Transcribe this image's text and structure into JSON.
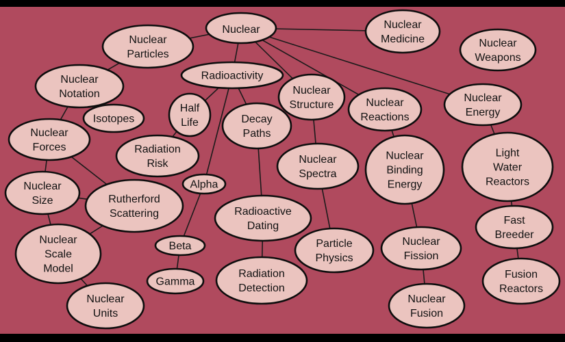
{
  "nodes": [
    {
      "id": "nuclear",
      "lines": [
        "Nuclear"
      ]
    },
    {
      "id": "medicine",
      "lines": [
        "Nuclear",
        "Medicine"
      ]
    },
    {
      "id": "particles",
      "lines": [
        "Nuclear",
        "Particles"
      ]
    },
    {
      "id": "weapons",
      "lines": [
        "Nuclear",
        "Weapons"
      ]
    },
    {
      "id": "notation",
      "lines": [
        "Nuclear",
        "Notation"
      ]
    },
    {
      "id": "radioactivity",
      "lines": [
        "Radioactivity"
      ]
    },
    {
      "id": "structure",
      "lines": [
        "Nuclear",
        "Structure"
      ]
    },
    {
      "id": "reactions",
      "lines": [
        "Nuclear",
        "Reactions"
      ]
    },
    {
      "id": "energy",
      "lines": [
        "Nuclear",
        "Energy"
      ]
    },
    {
      "id": "isotopes",
      "lines": [
        "Isotopes"
      ]
    },
    {
      "id": "halflife",
      "lines": [
        "Half",
        "Life"
      ]
    },
    {
      "id": "decay",
      "lines": [
        "Decay",
        "Paths"
      ]
    },
    {
      "id": "forces",
      "lines": [
        "Nuclear",
        "Forces"
      ]
    },
    {
      "id": "risk",
      "lines": [
        "Radiation",
        "Risk"
      ]
    },
    {
      "id": "spectra",
      "lines": [
        "Nuclear",
        "Spectra"
      ]
    },
    {
      "id": "binding",
      "lines": [
        "Nuclear",
        "Binding",
        "Energy"
      ]
    },
    {
      "id": "lwr",
      "lines": [
        "Light",
        "Water",
        "Reactors"
      ]
    },
    {
      "id": "size",
      "lines": [
        "Nuclear",
        "Size"
      ]
    },
    {
      "id": "alpha",
      "lines": [
        "Alpha"
      ]
    },
    {
      "id": "rutherford",
      "lines": [
        "Rutherford",
        "Scattering"
      ]
    },
    {
      "id": "dating",
      "lines": [
        "Radioactive",
        "Dating"
      ]
    },
    {
      "id": "breeder",
      "lines": [
        "Fast",
        "Breeder"
      ]
    },
    {
      "id": "scale",
      "lines": [
        "Nuclear",
        "Scale",
        "Model"
      ]
    },
    {
      "id": "beta",
      "lines": [
        "Beta"
      ]
    },
    {
      "id": "particlephys",
      "lines": [
        "Particle",
        "Physics"
      ]
    },
    {
      "id": "fission",
      "lines": [
        "Nuclear",
        "Fission"
      ]
    },
    {
      "id": "gamma",
      "lines": [
        "Gamma"
      ]
    },
    {
      "id": "detection",
      "lines": [
        "Radiation",
        "Detection"
      ]
    },
    {
      "id": "fusionreact",
      "lines": [
        "Fusion",
        "Reactors"
      ]
    },
    {
      "id": "units",
      "lines": [
        "Nuclear",
        "Units"
      ]
    },
    {
      "id": "fusion",
      "lines": [
        "Nuclear",
        "Fusion"
      ]
    }
  ],
  "edges": [
    [
      "nuclear",
      "medicine"
    ],
    [
      "nuclear",
      "particles"
    ],
    [
      "nuclear",
      "radioactivity"
    ],
    [
      "nuclear",
      "structure"
    ],
    [
      "nuclear",
      "reactions"
    ],
    [
      "nuclear",
      "energy"
    ],
    [
      "particles",
      "notation"
    ],
    [
      "notation",
      "forces"
    ],
    [
      "forces",
      "size"
    ],
    [
      "forces",
      "rutherford"
    ],
    [
      "size",
      "rutherford"
    ],
    [
      "size",
      "scale"
    ],
    [
      "rutherford",
      "scale"
    ],
    [
      "scale",
      "units"
    ],
    [
      "radioactivity",
      "halflife"
    ],
    [
      "halflife",
      "risk"
    ],
    [
      "radioactivity",
      "decay"
    ],
    [
      "decay",
      "dating"
    ],
    [
      "dating",
      "detection"
    ],
    [
      "radioactivity",
      "alpha"
    ],
    [
      "alpha",
      "beta"
    ],
    [
      "beta",
      "gamma"
    ],
    [
      "structure",
      "spectra"
    ],
    [
      "spectra",
      "particlephys"
    ],
    [
      "reactions",
      "binding"
    ],
    [
      "binding",
      "fission"
    ],
    [
      "fission",
      "fusion"
    ],
    [
      "energy",
      "lwr"
    ],
    [
      "lwr",
      "breeder"
    ],
    [
      "breeder",
      "fusionreact"
    ]
  ]
}
